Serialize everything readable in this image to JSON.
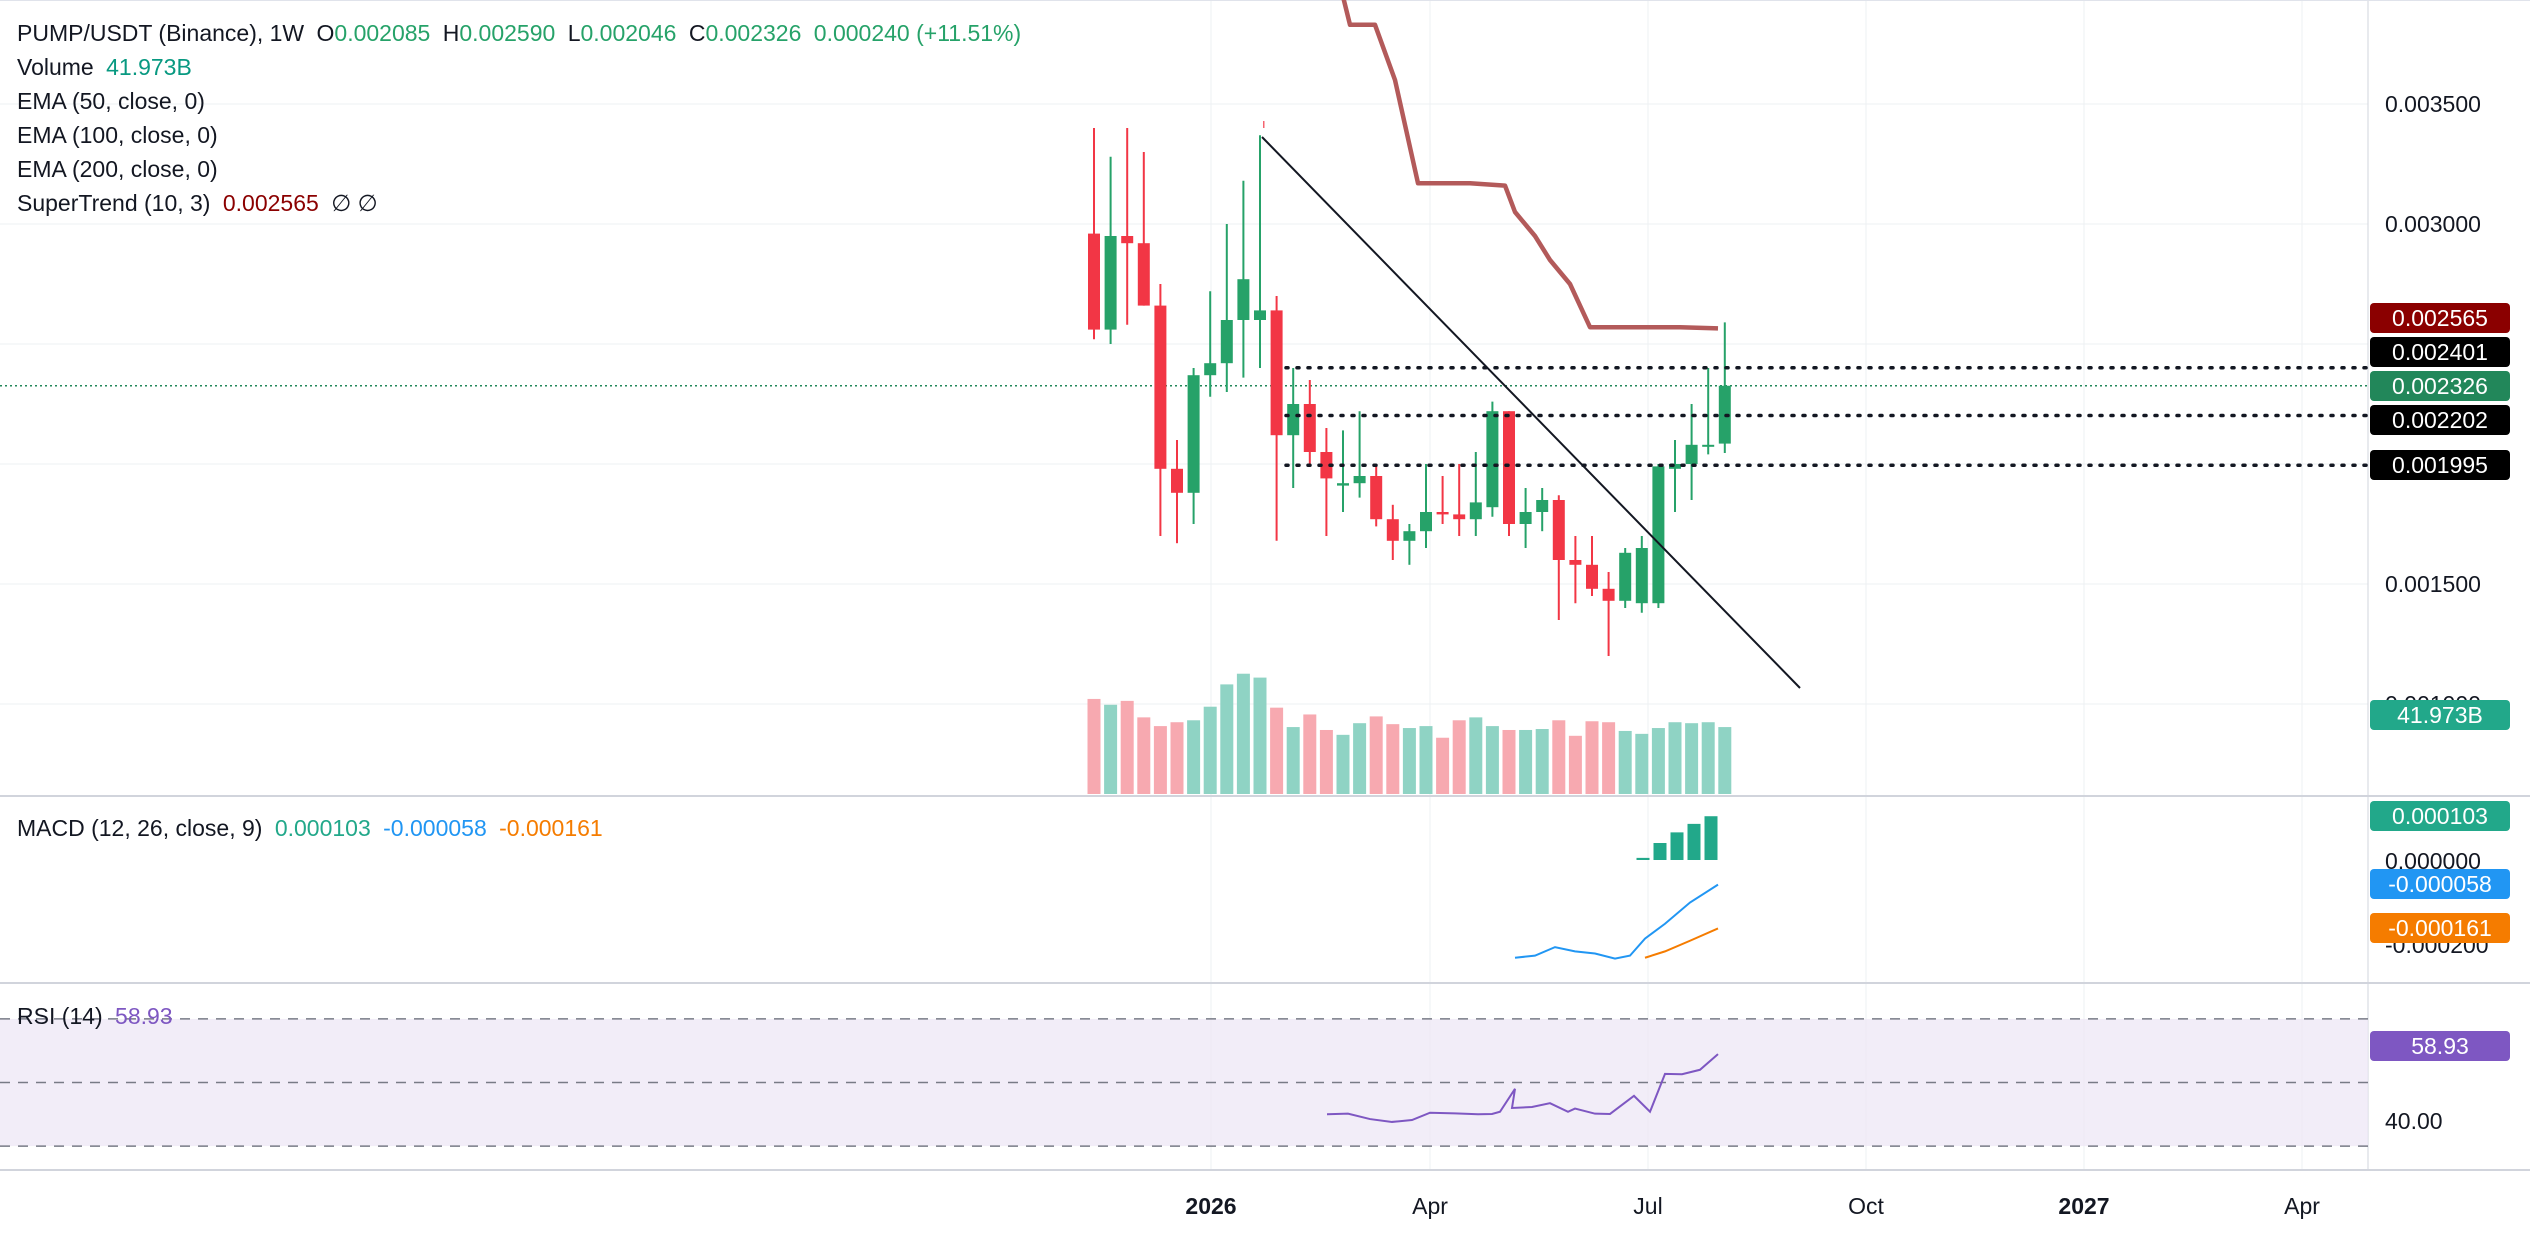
{
  "header": {
    "symbol": "PUMP/USDT (Binance), 1W",
    "open_label": "O",
    "open": "0.002085",
    "high_label": "H",
    "high": "0.002590",
    "low_label": "L",
    "low": "0.002046",
    "close_label": "C",
    "close": "0.002326",
    "change": "0.000240 (+11.51%)"
  },
  "indicators": {
    "volume_label": "Volume",
    "volume_value": "41.973B",
    "ema50": "EMA (50, close, 0)",
    "ema100": "EMA (100, close, 0)",
    "ema200": "EMA (200, close, 0)",
    "supertrend_label": "SuperTrend (10, 3)",
    "supertrend_value": "0.002565",
    "supertrend_flags": "∅  ∅",
    "macd_label": "MACD (12, 26, close, 9)",
    "macd_hist": "0.000103",
    "macd_line": "-0.000058",
    "macd_signal": "-0.000161",
    "rsi_label": "RSI (14)",
    "rsi_value": "58.93"
  },
  "price_axis": {
    "ticks": [
      "0.003500",
      "0.003000",
      "0.001500",
      "0.001000"
    ],
    "tags": [
      {
        "value": "0.002565",
        "color": "#8b0000"
      },
      {
        "value": "0.002401",
        "color": "#000000"
      },
      {
        "value": "0.002326",
        "color": "#22875a"
      },
      {
        "value": "0.002202",
        "color": "#000000"
      },
      {
        "value": "0.001995",
        "color": "#000000"
      }
    ],
    "volume_tag": "41.973B",
    "macd_ticks": [
      "0.000000",
      "-0.000200"
    ],
    "macd_tags": [
      {
        "value": "0.000103",
        "color": "#22a88a"
      },
      {
        "value": "-0.000058",
        "color": "#2196f3"
      },
      {
        "value": "-0.000161",
        "color": "#f57c00"
      }
    ],
    "rsi_tick": "40.00",
    "rsi_tag": "58.93"
  },
  "time_axis": [
    "2026",
    "Apr",
    "Jul",
    "Oct",
    "2027",
    "Apr"
  ],
  "colors": {
    "up": "#26a269",
    "down": "#f23645",
    "vol_up": "#8fd3c4",
    "vol_down": "#f7a9b0",
    "supertrend": "#b35a5a",
    "macd": "#2196f3",
    "signal": "#f57c00",
    "hist": "#22a88a",
    "rsi": "#7e57c2"
  },
  "chart_data": {
    "type": "candlestick",
    "title": "PUMP/USDT (Binance), 1W",
    "ylim": [
      0.00092,
      0.0039
    ],
    "candles": [
      {
        "o": 0.00296,
        "h": 0.0034,
        "l": 0.00252,
        "c": 0.00256
      },
      {
        "o": 0.00256,
        "h": 0.00328,
        "l": 0.0025,
        "c": 0.00295
      },
      {
        "o": 0.00295,
        "h": 0.0034,
        "l": 0.00258,
        "c": 0.00292
      },
      {
        "o": 0.00292,
        "h": 0.0033,
        "l": 0.00266,
        "c": 0.00266
      },
      {
        "o": 0.00266,
        "h": 0.00275,
        "l": 0.0017,
        "c": 0.00198
      },
      {
        "o": 0.00198,
        "h": 0.0021,
        "l": 0.00167,
        "c": 0.00188
      },
      {
        "o": 0.00188,
        "h": 0.0024,
        "l": 0.00175,
        "c": 0.00237
      },
      {
        "o": 0.00237,
        "h": 0.00272,
        "l": 0.00228,
        "c": 0.00242
      },
      {
        "o": 0.00242,
        "h": 0.003,
        "l": 0.0023,
        "c": 0.0026
      },
      {
        "o": 0.0026,
        "h": 0.00318,
        "l": 0.00236,
        "c": 0.00277
      },
      {
        "o": 0.0026,
        "h": 0.00337,
        "l": 0.0024,
        "c": 0.00264
      },
      {
        "o": 0.00264,
        "h": 0.0027,
        "l": 0.00168,
        "c": 0.00212
      },
      {
        "o": 0.00212,
        "h": 0.0024,
        "l": 0.0019,
        "c": 0.00225
      },
      {
        "o": 0.00225,
        "h": 0.00235,
        "l": 0.002,
        "c": 0.00205
      },
      {
        "o": 0.00205,
        "h": 0.00215,
        "l": 0.0017,
        "c": 0.00194
      },
      {
        "o": 0.00191,
        "h": 0.00214,
        "l": 0.0018,
        "c": 0.00192
      },
      {
        "o": 0.00192,
        "h": 0.00222,
        "l": 0.00186,
        "c": 0.00195
      },
      {
        "o": 0.00195,
        "h": 0.002,
        "l": 0.00174,
        "c": 0.00177
      },
      {
        "o": 0.00177,
        "h": 0.00183,
        "l": 0.0016,
        "c": 0.00168
      },
      {
        "o": 0.00168,
        "h": 0.00175,
        "l": 0.00158,
        "c": 0.00172
      },
      {
        "o": 0.00172,
        "h": 0.002,
        "l": 0.00165,
        "c": 0.0018
      },
      {
        "o": 0.0018,
        "h": 0.00195,
        "l": 0.00175,
        "c": 0.00179
      },
      {
        "o": 0.00179,
        "h": 0.002,
        "l": 0.0017,
        "c": 0.00177
      },
      {
        "o": 0.00177,
        "h": 0.00205,
        "l": 0.0017,
        "c": 0.00184
      },
      {
        "o": 0.00182,
        "h": 0.00226,
        "l": 0.00178,
        "c": 0.00222
      },
      {
        "o": 0.00222,
        "h": 0.00222,
        "l": 0.0017,
        "c": 0.00175
      },
      {
        "o": 0.00175,
        "h": 0.0019,
        "l": 0.00165,
        "c": 0.0018
      },
      {
        "o": 0.0018,
        "h": 0.0019,
        "l": 0.00172,
        "c": 0.00185
      },
      {
        "o": 0.00185,
        "h": 0.00187,
        "l": 0.00135,
        "c": 0.0016
      },
      {
        "o": 0.0016,
        "h": 0.0017,
        "l": 0.00142,
        "c": 0.00158
      },
      {
        "o": 0.00158,
        "h": 0.0017,
        "l": 0.00145,
        "c": 0.00148
      },
      {
        "o": 0.00148,
        "h": 0.00155,
        "l": 0.0012,
        "c": 0.00143
      },
      {
        "o": 0.00143,
        "h": 0.00165,
        "l": 0.0014,
        "c": 0.00163
      },
      {
        "o": 0.00142,
        "h": 0.0017,
        "l": 0.00138,
        "c": 0.00165
      },
      {
        "o": 0.00142,
        "h": 0.002,
        "l": 0.0014,
        "c": 0.00199
      },
      {
        "o": 0.00198,
        "h": 0.0021,
        "l": 0.0018,
        "c": 0.002
      },
      {
        "o": 0.002,
        "h": 0.00225,
        "l": 0.00185,
        "c": 0.00208
      },
      {
        "o": 0.00208,
        "h": 0.0024,
        "l": 0.00204,
        "c": 0.00208
      },
      {
        "o": 0.002085,
        "h": 0.00259,
        "l": 0.002046,
        "c": 0.002326
      }
    ],
    "volume": [
      0.98,
      0.92,
      0.96,
      0.79,
      0.7,
      0.74,
      0.76,
      0.9,
      1.13,
      1.24,
      1.2,
      0.89,
      0.69,
      0.82,
      0.66,
      0.61,
      0.73,
      0.8,
      0.72,
      0.68,
      0.7,
      0.58,
      0.76,
      0.79,
      0.7,
      0.66,
      0.66,
      0.67,
      0.76,
      0.6,
      0.75,
      0.74,
      0.65,
      0.62,
      0.68,
      0.74,
      0.73,
      0.74,
      0.69
    ],
    "supertrend": [
      0.0046,
      0.0042,
      0.00383,
      0.00383,
      0.0036,
      0.00317,
      0.00317,
      0.00317,
      0.00316,
      0.00305,
      0.00295,
      0.00285,
      0.00275,
      0.00257,
      0.00257,
      0.00257,
      0.00257,
      0.002565
    ],
    "resistance_levels": [
      0.002401,
      0.002202,
      0.001995
    ],
    "macd": {
      "line": [
        -0.00023,
        -0.000225,
        -0.000205,
        -0.000215,
        -0.00022,
        -0.000232,
        -0.000225,
        -0.000185,
        -0.00015,
        -0.0001,
        -5.8e-05
      ],
      "signal": [
        -0.00023,
        -0.000215,
        -0.00019,
        -0.000161
      ],
      "hist": [
        5e-06,
        4e-05,
        6.5e-05,
        8.5e-05,
        0.000103
      ]
    },
    "rsi": [
      40.0,
      40.2,
      38.5,
      37.6,
      38.2,
      40.5,
      40.3,
      40.0,
      40.1,
      40.8,
      48.0,
      42.0,
      42.3,
      43.5,
      40.8,
      41.8,
      40.2,
      40.1,
      45.8,
      40.8,
      52.7,
      52.6,
      54.0,
      58.93
    ],
    "rsi_bands": [
      70,
      50,
      30
    ],
    "macd_ylim": [
      -0.00025,
      0.00012
    ],
    "rsi_ylim": [
      25,
      75
    ]
  }
}
